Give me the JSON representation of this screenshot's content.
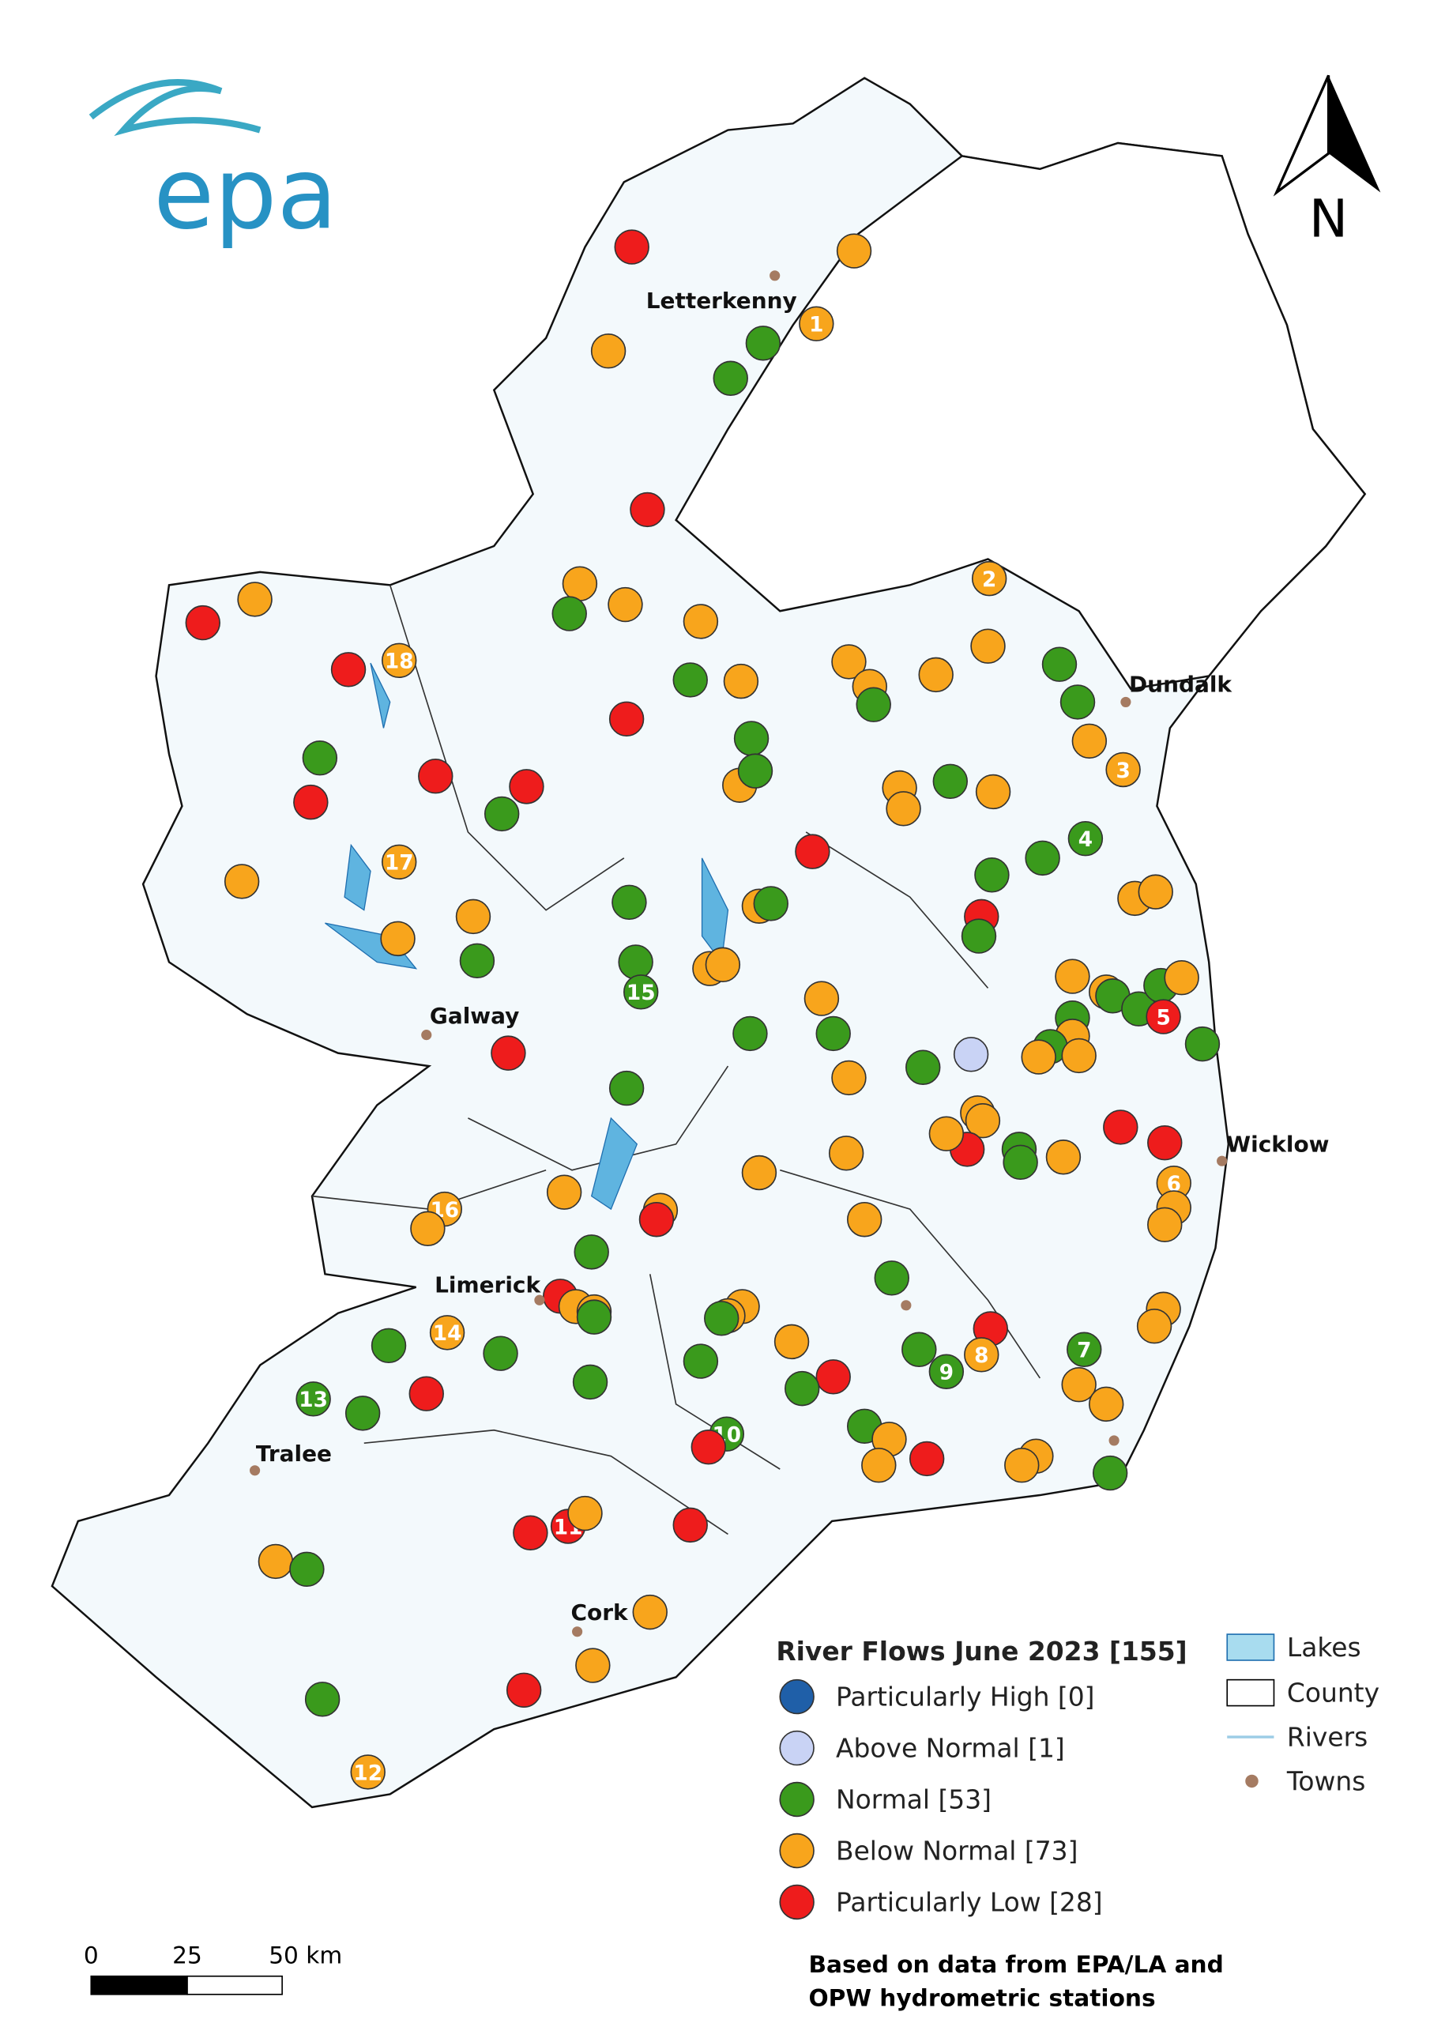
{
  "logo": "epa",
  "north": "N",
  "towns": [
    "Letterkenny",
    "Dundalk",
    "Galway",
    "Wicklow",
    "Limerick",
    "Tralee",
    "Cork"
  ],
  "station_labels": [
    "1",
    "2",
    "3",
    "4",
    "5",
    "6",
    "7",
    "8",
    "9",
    "10",
    "11",
    "12",
    "13",
    "14",
    "15",
    "16",
    "17",
    "18"
  ],
  "legend": {
    "title": "River Flows June 2023 [155]",
    "items": [
      {
        "label": "Particularly High [0]",
        "color": "#1f5fa8"
      },
      {
        "label": "Above Normal [1]",
        "color": "#c9d3f5"
      },
      {
        "label": "Normal [53]",
        "color": "#3a9a1c"
      },
      {
        "label": "Below Normal [73]",
        "color": "#f8a51c"
      },
      {
        "label": "Particularly Low [28]",
        "color": "#ee1c1c"
      }
    ],
    "layers": [
      "Lakes",
      "County",
      "Rivers",
      "Towns"
    ]
  },
  "scale": {
    "labels": [
      "0",
      "25",
      "50 km"
    ]
  },
  "source": [
    "Based on data from EPA/LA and",
    "OPW hydrometric stations"
  ]
}
